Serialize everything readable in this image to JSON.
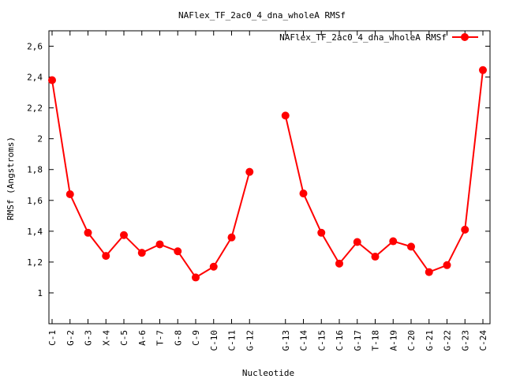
{
  "chart_data": {
    "type": "line",
    "title": "NAFlex_TF_2ac0_4_dna_wholeA RMSf",
    "xlabel": "Nucleotide",
    "ylabel": "RMSf (Angstroms)",
    "ylim": [
      0.8,
      2.7
    ],
    "yticks": [
      1,
      1.2,
      1.4,
      1.6,
      1.8,
      2,
      2.2,
      2.4,
      2.6
    ],
    "ytick_labels": [
      "1",
      "1,2",
      "1,4",
      "1,6",
      "1,8",
      "2",
      "2,2",
      "2,4",
      "2,6"
    ],
    "xlim": [
      1,
      25
    ],
    "grid": false,
    "legend_position": "top-right",
    "series": [
      {
        "name": "NAFlex_TF_2ac0_4_dna_wholeA RMSf",
        "color": "#ff0000",
        "segments": [
          {
            "x": [
              1,
              2,
              3,
              4,
              5,
              6,
              7,
              8,
              9,
              10,
              11,
              12
            ],
            "labels": [
              "C-1",
              "G-2",
              "G-3",
              "X-4",
              "C-5",
              "A-6",
              "T-7",
              "G-8",
              "C-9",
              "C-10",
              "C-11",
              "G-12"
            ],
            "values": [
              2.38,
              1.64,
              1.39,
              1.24,
              1.375,
              1.26,
              1.315,
              1.27,
              1.1,
              1.17,
              1.36,
              1.785
            ]
          },
          {
            "x": [
              14,
              15,
              16,
              17,
              18,
              19,
              20,
              21,
              22,
              23,
              24,
              25
            ],
            "labels": [
              "G-13",
              "C-14",
              "C-15",
              "C-16",
              "G-17",
              "T-18",
              "A-19",
              "C-20",
              "G-21",
              "G-22",
              "G-23",
              "C-24"
            ],
            "values": [
              2.15,
              1.645,
              1.39,
              1.19,
              1.33,
              1.235,
              1.335,
              1.3,
              1.135,
              1.18,
              1.41,
              2.445
            ]
          }
        ]
      }
    ]
  }
}
